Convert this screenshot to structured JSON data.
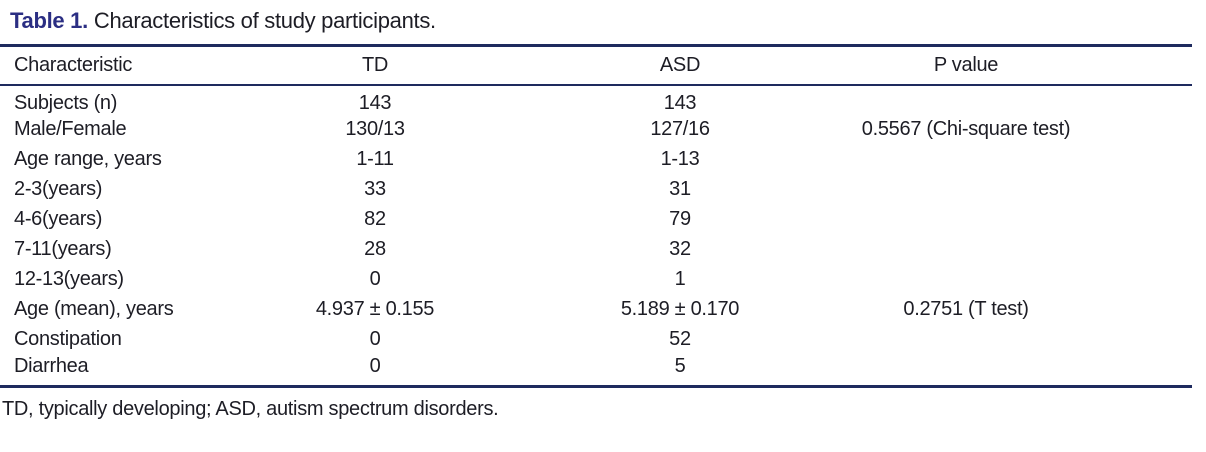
{
  "caption": {
    "label": "Table 1.",
    "text": "Characteristics of study participants."
  },
  "table": {
    "columns": [
      "Characteristic",
      "TD",
      "ASD",
      "P value"
    ],
    "rows": [
      {
        "characteristic": "Subjects (n)",
        "td": "143",
        "asd": "143",
        "p": ""
      },
      {
        "characteristic": "Male/Female",
        "td": "130/13",
        "asd": "127/16",
        "p": "0.5567 (Chi-square test)"
      },
      {
        "characteristic": "Age range, years",
        "td": "1-11",
        "asd": "1-13",
        "p": ""
      },
      {
        "characteristic": "2-3(years)",
        "td": "33",
        "asd": "31",
        "p": ""
      },
      {
        "characteristic": "4-6(years)",
        "td": "82",
        "asd": "79",
        "p": ""
      },
      {
        "characteristic": "7-11(years)",
        "td": "28",
        "asd": "32",
        "p": ""
      },
      {
        "characteristic": "12-13(years)",
        "td": "0",
        "asd": "1",
        "p": ""
      },
      {
        "characteristic": "Age (mean), years",
        "td": "4.937 ± 0.155",
        "asd": "5.189 ± 0.170",
        "p": "0.2751 (T test)"
      },
      {
        "characteristic": "Constipation",
        "td": "0",
        "asd": "52",
        "p": ""
      },
      {
        "characteristic": "Diarrhea",
        "td": "0",
        "asd": "5",
        "p": ""
      }
    ]
  },
  "footnote": "TD, typically developing; ASD, autism spectrum disorders.",
  "colors": {
    "accent": "#2b2e83",
    "rule": "#1e2a5e",
    "text": "#1d1d25",
    "bg": "#ffffff"
  }
}
